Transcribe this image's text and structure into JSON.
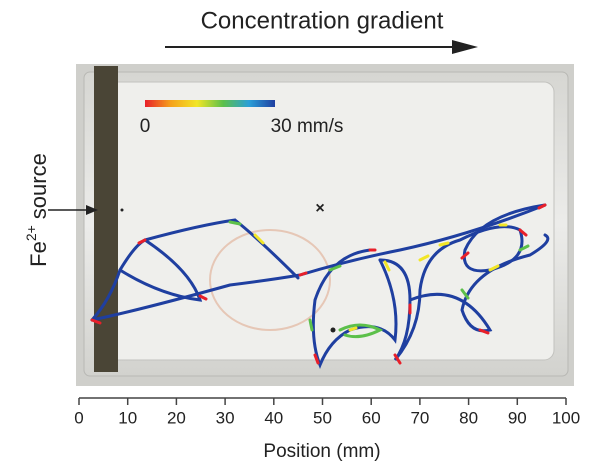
{
  "chart_data": {
    "type": "trajectory",
    "title": "Concentration gradient",
    "xlabel": "Position (mm)",
    "xlim": [
      0,
      100
    ],
    "xticks": [
      0,
      10,
      20,
      30,
      40,
      50,
      60,
      70,
      80,
      90,
      100
    ],
    "source_label": {
      "base": "Fe",
      "superscript": "2+",
      "rest": "source"
    },
    "colorbar": {
      "ticks": [
        0,
        {
          "value": 30,
          "label": "30 mm/s"
        }
      ],
      "colors": [
        "#e8202a",
        "#f5a21b",
        "#f2e627",
        "#5cc04a",
        "#2a9fd8",
        "#1f3fa0"
      ]
    }
  }
}
